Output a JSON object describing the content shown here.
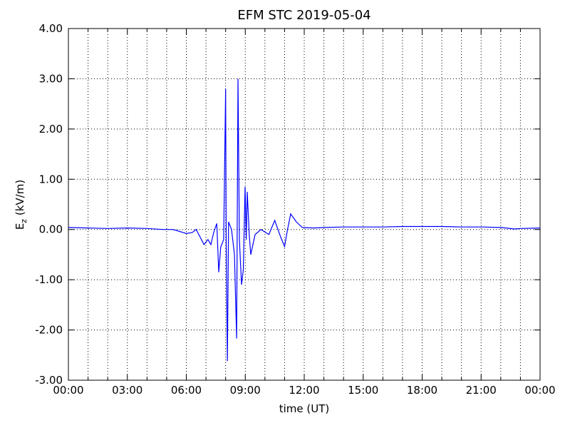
{
  "chart_data": {
    "type": "line",
    "title": "EFM STC    2019-05-04",
    "xlabel": "time (UT)",
    "ylabel": {
      "main": "E",
      "sub": "z",
      "unit": " (kV/m)"
    },
    "xlim": [
      0,
      24
    ],
    "ylim": [
      -3,
      4
    ],
    "xticks": [
      {
        "value": 0,
        "label": "00:00"
      },
      {
        "value": 3,
        "label": "03:00"
      },
      {
        "value": 6,
        "label": "06:00"
      },
      {
        "value": 9,
        "label": "09:00"
      },
      {
        "value": 12,
        "label": "12:00"
      },
      {
        "value": 15,
        "label": "15:00"
      },
      {
        "value": 18,
        "label": "18:00"
      },
      {
        "value": 21,
        "label": "21:00"
      },
      {
        "value": 24,
        "label": "00:00"
      }
    ],
    "xminorticks": [
      1,
      2,
      4,
      5,
      7,
      8,
      10,
      11,
      13,
      14,
      16,
      17,
      19,
      20,
      22,
      23
    ],
    "yticks": [
      {
        "value": -3,
        "label": "-3.00"
      },
      {
        "value": -2,
        "label": "-2.00"
      },
      {
        "value": -1,
        "label": "-1.00"
      },
      {
        "value": 0,
        "label": "0.00"
      },
      {
        "value": 1,
        "label": "1.00"
      },
      {
        "value": 2,
        "label": "2.00"
      },
      {
        "value": 3,
        "label": "3.00"
      },
      {
        "value": 4,
        "label": "4.00"
      }
    ],
    "grid": true,
    "series": [
      {
        "color": "#0000ff",
        "x": [
          0,
          1,
          2,
          3,
          4,
          4.8,
          5.3,
          5.5,
          6.0,
          6.3,
          6.5,
          6.7,
          6.9,
          7.1,
          7.25,
          7.4,
          7.55,
          7.65,
          7.75,
          7.9,
          8.0,
          8.03,
          8.09,
          8.15,
          8.3,
          8.45,
          8.56,
          8.63,
          8.7,
          8.81,
          8.9,
          8.99,
          9.05,
          9.1,
          9.2,
          9.28,
          9.5,
          9.8,
          10.2,
          10.5,
          10.8,
          11.0,
          11.15,
          11.31,
          11.6,
          11.9,
          12.5,
          13,
          14,
          15,
          16,
          17,
          18,
          19,
          20,
          21,
          22,
          22.7,
          23,
          24
        ],
        "values": [
          0.04,
          0.03,
          0.02,
          0.03,
          0.02,
          0.0,
          0.0,
          -0.02,
          -0.08,
          -0.06,
          0.0,
          -0.15,
          -0.3,
          -0.2,
          -0.3,
          -0.05,
          0.12,
          -0.85,
          -0.35,
          -0.2,
          2.8,
          -0.3,
          -2.62,
          0.15,
          0.0,
          -0.5,
          -2.17,
          3.0,
          -0.2,
          -1.1,
          -0.8,
          0.85,
          -0.2,
          0.75,
          -0.1,
          -0.5,
          -0.1,
          0.0,
          -0.1,
          0.18,
          -0.15,
          -0.34,
          0.0,
          0.31,
          0.15,
          0.04,
          0.03,
          0.04,
          0.05,
          0.05,
          0.05,
          0.06,
          0.06,
          0.06,
          0.05,
          0.05,
          0.04,
          0.01,
          0.02,
          0.03
        ]
      }
    ]
  }
}
